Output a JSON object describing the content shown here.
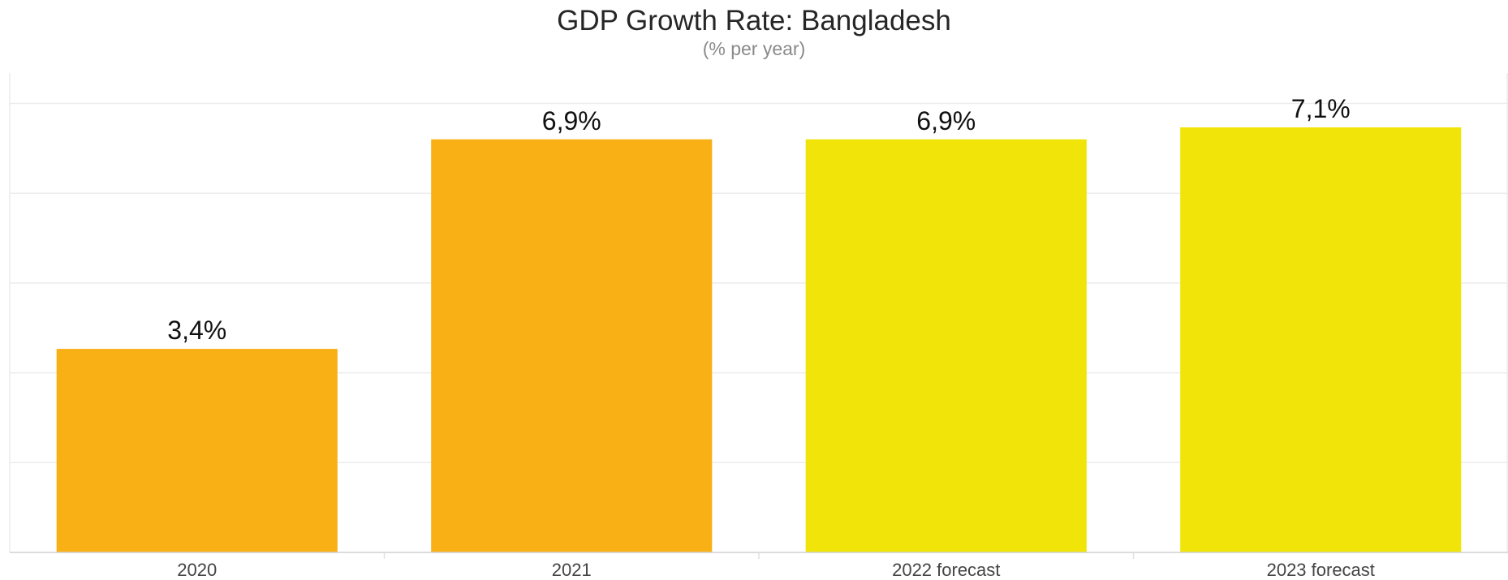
{
  "chart_data": {
    "type": "bar",
    "title": "GDP Growth Rate: Bangladesh",
    "subtitle": "(% per year)",
    "categories": [
      "2020",
      "2021",
      "2022 forecast",
      "2023 forecast"
    ],
    "values": [
      3.4,
      6.9,
      6.9,
      7.1
    ],
    "value_labels": [
      "3,4%",
      "6,9%",
      "6,9%",
      "7,1%"
    ],
    "colors": [
      "#F9B015",
      "#F9B015",
      "#F0E408",
      "#F0E408"
    ],
    "xlabel": "",
    "ylabel": "",
    "ylim": [
      0,
      8
    ],
    "grid": true,
    "legend": "none"
  }
}
